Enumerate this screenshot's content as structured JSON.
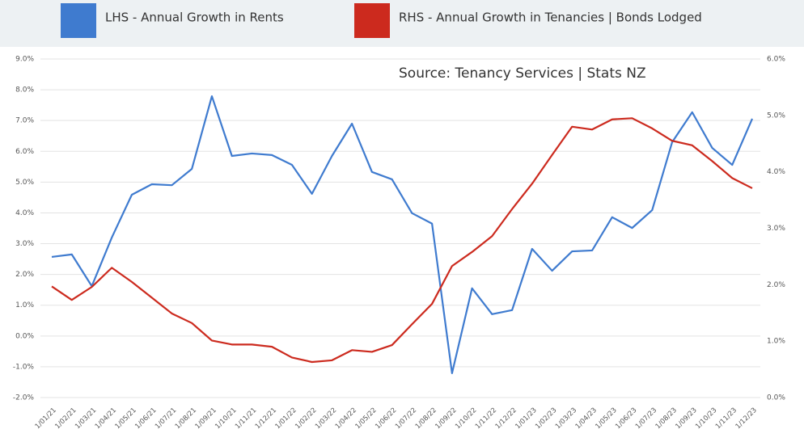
{
  "chart_data": {
    "type": "line",
    "annotation": "Source: Tenancy Services | Stats NZ",
    "categories": [
      "1/01/21",
      "1/02/21",
      "1/03/21",
      "1/04/21",
      "1/05/21",
      "1/06/21",
      "1/07/21",
      "1/08/21",
      "1/09/21",
      "1/10/21",
      "1/11/21",
      "1/12/21",
      "1/01/22",
      "1/02/22",
      "1/03/22",
      "1/04/22",
      "1/05/22",
      "1/06/22",
      "1/07/22",
      "1/08/22",
      "1/09/22",
      "1/10/22",
      "1/11/22",
      "1/12/22",
      "1/01/23",
      "1/02/23",
      "1/03/23",
      "1/04/23",
      "1/05/23",
      "1/06/23",
      "1/07/23",
      "1/08/23",
      "1/09/23",
      "1/10/23",
      "1/11/23",
      "1/12/23"
    ],
    "series": [
      {
        "name": "LHS - Annual Growth in Rents",
        "color": "#3f7bcf",
        "axis": "y",
        "values": [
          2.57,
          2.65,
          1.62,
          3.2,
          4.59,
          4.93,
          4.9,
          5.43,
          7.79,
          5.85,
          5.93,
          5.88,
          5.56,
          4.62,
          5.85,
          6.9,
          5.33,
          5.09,
          3.99,
          3.65,
          -1.21,
          1.55,
          0.71,
          0.84,
          2.83,
          2.12,
          2.75,
          2.78,
          3.86,
          3.51,
          4.09,
          6.3,
          7.27,
          6.11,
          5.56,
          7.06
        ]
      },
      {
        "name": "RHS - Annual Growth in Tenancies | Bonds Lodged",
        "color": "#cc2a1e",
        "axis": "y2",
        "values": [
          1.97,
          1.73,
          1.96,
          2.3,
          2.05,
          1.77,
          1.49,
          1.32,
          1.01,
          0.94,
          0.94,
          0.9,
          0.71,
          0.63,
          0.66,
          0.84,
          0.81,
          0.93,
          1.3,
          1.66,
          2.33,
          2.58,
          2.86,
          3.34,
          3.79,
          4.3,
          4.8,
          4.75,
          4.93,
          4.95,
          4.77,
          4.55,
          4.47,
          4.19,
          3.89,
          3.71
        ]
      }
    ],
    "ylim": [
      -2,
      9
    ],
    "yticks": [
      {
        "value": -2,
        "label": "-2.0%"
      },
      {
        "value": -1,
        "label": "-1.0%"
      },
      {
        "value": 0,
        "label": "0.0%"
      },
      {
        "value": 1,
        "label": "1.0%"
      },
      {
        "value": 2,
        "label": "2.0%"
      },
      {
        "value": 3,
        "label": "3.0%"
      },
      {
        "value": 4,
        "label": "4.0%"
      },
      {
        "value": 5,
        "label": "5.0%"
      },
      {
        "value": 6,
        "label": "6.0%"
      },
      {
        "value": 7,
        "label": "7.0%"
      },
      {
        "value": 8,
        "label": "8.0%"
      },
      {
        "value": 9,
        "label": "9.0%"
      }
    ],
    "y2lim": [
      0,
      6
    ],
    "y2ticks": [
      {
        "value": 0,
        "label": "0.0%"
      },
      {
        "value": 1,
        "label": "1.0%"
      },
      {
        "value": 2,
        "label": "2.0%"
      },
      {
        "value": 3,
        "label": "3.0%"
      },
      {
        "value": 4,
        "label": "4.0%"
      },
      {
        "value": 5,
        "label": "5.0%"
      },
      {
        "value": 6,
        "label": "6.0%"
      }
    ],
    "grid": true
  }
}
